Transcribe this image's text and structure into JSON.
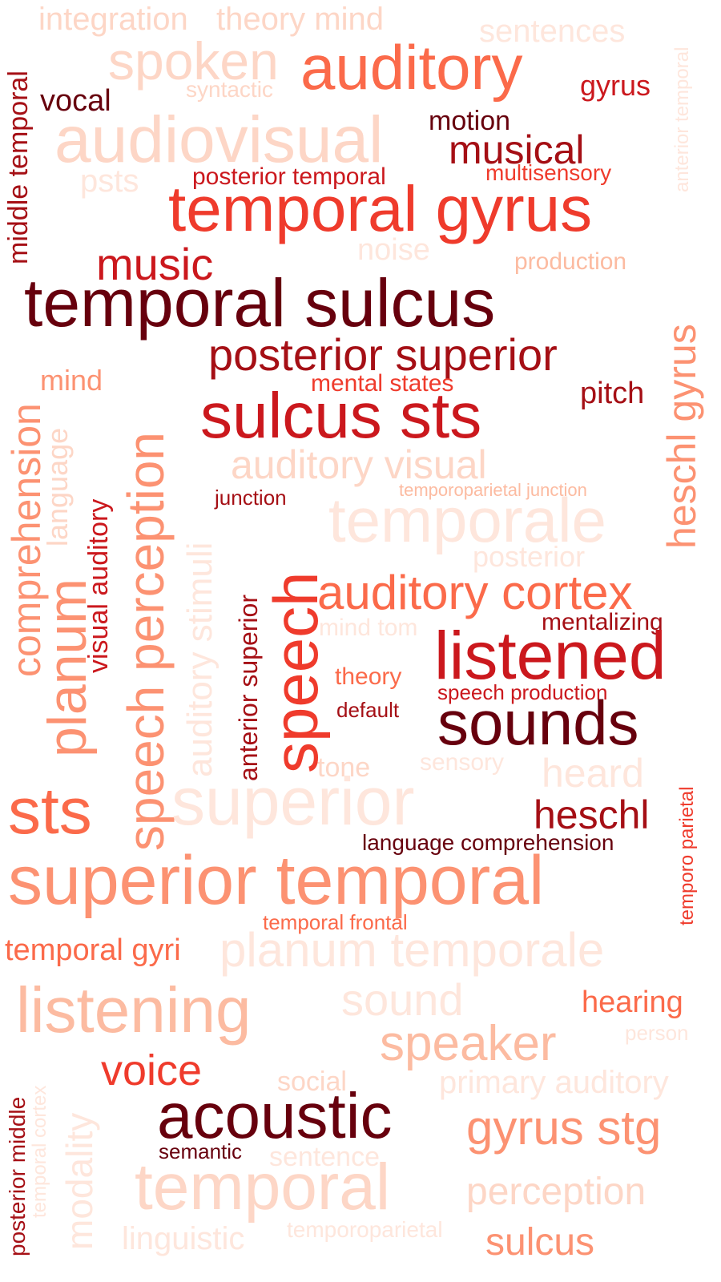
{
  "palette": {
    "c1": "#67000d",
    "c2": "#a50f15",
    "c3": "#cb181d",
    "c4": "#ef3b2c",
    "c5": "#fb6a4a",
    "c6": "#fc9272",
    "c7": "#fcbba1",
    "c8": "#fdd6c6",
    "c9": "#fee6dc"
  },
  "words": [
    {
      "text": "temporal sulcus",
      "color": "c1"
    },
    {
      "text": "temporal gyrus",
      "color": "c4"
    },
    {
      "text": "auditory",
      "color": "c5"
    },
    {
      "text": "integration",
      "color": "c8"
    },
    {
      "text": "theory mind",
      "color": "c8"
    },
    {
      "text": "sentences",
      "color": "c9"
    },
    {
      "text": "spoken",
      "color": "c8"
    },
    {
      "text": "vocal",
      "color": "c1"
    },
    {
      "text": "syntactic",
      "color": "c8"
    },
    {
      "text": "gyrus",
      "color": "c3"
    },
    {
      "text": "middle temporal",
      "color": "c2"
    },
    {
      "text": "anterior temporal",
      "color": "c9"
    },
    {
      "text": "audiovisual",
      "color": "c8"
    },
    {
      "text": "motion",
      "color": "c1"
    },
    {
      "text": "musical",
      "color": "c2"
    },
    {
      "text": "multisensory",
      "color": "c4"
    },
    {
      "text": "psts",
      "color": "c9"
    },
    {
      "text": "posterior temporal",
      "color": "c3"
    },
    {
      "text": "music",
      "color": "c3"
    },
    {
      "text": "noise",
      "color": "c9"
    },
    {
      "text": "production",
      "color": "c7"
    },
    {
      "text": "posterior superior",
      "color": "c2"
    },
    {
      "text": "heschl gyrus",
      "color": "c6"
    },
    {
      "text": "mind",
      "color": "c6"
    },
    {
      "text": "mental states",
      "color": "c4"
    },
    {
      "text": "pitch",
      "color": "c2"
    },
    {
      "text": "sulcus sts",
      "color": "c3"
    },
    {
      "text": "comprehension",
      "color": "c6"
    },
    {
      "text": "language",
      "color": "c8"
    },
    {
      "text": "visual auditory",
      "color": "c3"
    },
    {
      "text": "speech perception",
      "color": "c6"
    },
    {
      "text": "auditory stimuli",
      "color": "c9"
    },
    {
      "text": "auditory visual",
      "color": "c8"
    },
    {
      "text": "junction",
      "color": "c2"
    },
    {
      "text": "temporoparietal junction",
      "color": "c7"
    },
    {
      "text": "temporale",
      "color": "c9"
    },
    {
      "text": "planum",
      "color": "c6"
    },
    {
      "text": "posterior",
      "color": "c9"
    },
    {
      "text": "anterior superior",
      "color": "c2"
    },
    {
      "text": "speech",
      "color": "c4"
    },
    {
      "text": "auditory cortex",
      "color": "c5"
    },
    {
      "text": "mind tom",
      "color": "c9"
    },
    {
      "text": "mentalizing",
      "color": "c2"
    },
    {
      "text": "listened",
      "color": "c3"
    },
    {
      "text": "theory",
      "color": "c5"
    },
    {
      "text": "speech production",
      "color": "c3"
    },
    {
      "text": "default",
      "color": "c2"
    },
    {
      "text": "sounds",
      "color": "c1"
    },
    {
      "text": "tone",
      "color": "c8"
    },
    {
      "text": "sensory",
      "color": "c9"
    },
    {
      "text": "heard",
      "color": "c9"
    },
    {
      "text": "sts",
      "color": "c5"
    },
    {
      "text": "superior",
      "color": "c9"
    },
    {
      "text": "heschl",
      "color": "c2"
    },
    {
      "text": "language comprehension",
      "color": "c1"
    },
    {
      "text": "temporo parietal",
      "color": "c4"
    },
    {
      "text": "superior temporal",
      "color": "c6"
    },
    {
      "text": "temporal frontal",
      "color": "c5"
    },
    {
      "text": "temporal gyri",
      "color": "c5"
    },
    {
      "text": "planum temporale",
      "color": "c9"
    },
    {
      "text": "listening",
      "color": "c7"
    },
    {
      "text": "sound",
      "color": "c9"
    },
    {
      "text": "hearing",
      "color": "c5"
    },
    {
      "text": "person",
      "color": "c9"
    },
    {
      "text": "speaker",
      "color": "c7"
    },
    {
      "text": "voice",
      "color": "c4"
    },
    {
      "text": "social",
      "color": "c8"
    },
    {
      "text": "primary auditory",
      "color": "c9"
    },
    {
      "text": "posterior middle",
      "color": "c2"
    },
    {
      "text": "temporal cortex",
      "color": "c9"
    },
    {
      "text": "modality",
      "color": "c9"
    },
    {
      "text": "acoustic",
      "color": "c1"
    },
    {
      "text": "gyrus stg",
      "color": "c6"
    },
    {
      "text": "semantic",
      "color": "c1"
    },
    {
      "text": "sentence",
      "color": "c9"
    },
    {
      "text": "temporal",
      "color": "c8"
    },
    {
      "text": "perception",
      "color": "c8"
    },
    {
      "text": "linguistic",
      "color": "c9"
    },
    {
      "text": "temporoparietal",
      "color": "c9"
    },
    {
      "text": "sulcus",
      "color": "c6"
    }
  ]
}
